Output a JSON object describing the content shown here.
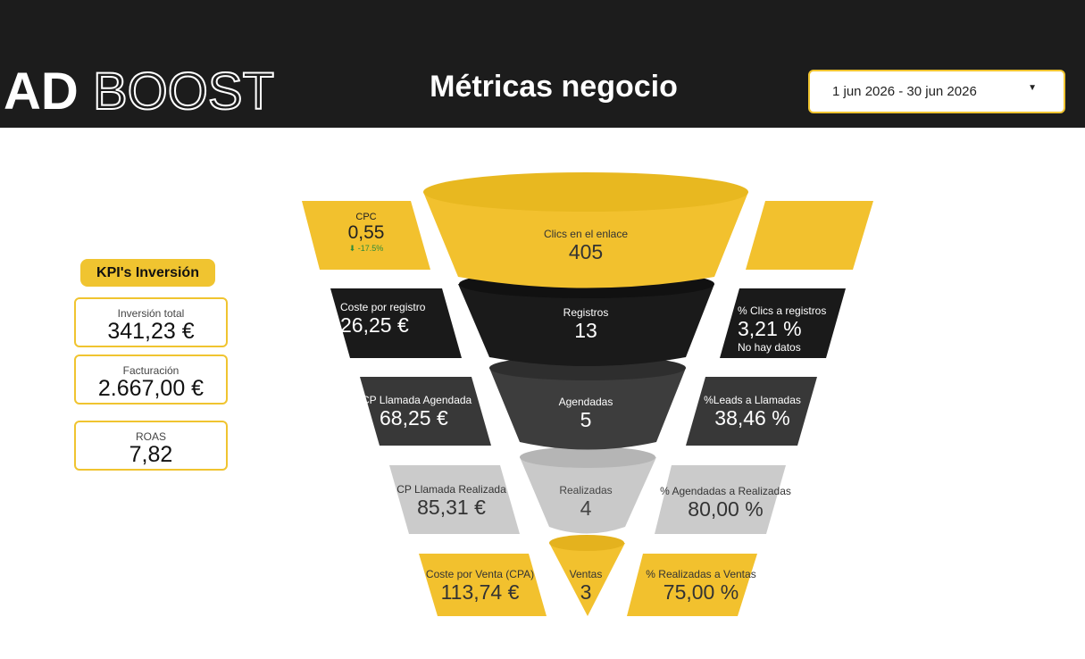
{
  "header": {
    "logo_bold": "AD",
    "logo_outline": "BOOST",
    "title": "Métricas negocio",
    "date_range": "1 jun 2026 - 30 jun 2026"
  },
  "kpi_panel": {
    "title": "KPI's Inversión",
    "cards": [
      {
        "label": "Inversión total",
        "value": "341,23 €"
      },
      {
        "label": "Facturación",
        "value": "2.667,00 €"
      },
      {
        "label": "ROAS",
        "value": "7,82"
      }
    ]
  },
  "funnel": {
    "stages": [
      {
        "label": "Clics en el enlace",
        "value": "405"
      },
      {
        "label": "Registros",
        "value": "13"
      },
      {
        "label": "Agendadas",
        "value": "5"
      },
      {
        "label": "Realizadas",
        "value": "4"
      },
      {
        "label": "Ventas",
        "value": "3"
      }
    ],
    "left_metrics": [
      {
        "label": "CPC",
        "value": "0,55",
        "delta": "⬇ -17.5%"
      },
      {
        "label": "Coste por registro",
        "value": "26,25 €"
      },
      {
        "label": "CP Llamada Agendada",
        "value": "68,25 €"
      },
      {
        "label": "CP Llamada Realizada",
        "value": "85,31 €"
      },
      {
        "label": "Coste por Venta (CPA)",
        "value": "113,74 €"
      }
    ],
    "right_metrics": [
      {
        "label": "% Clics a registros",
        "value": "3,21 %",
        "note": "No hay datos"
      },
      {
        "label": "%Leads a Llamadas",
        "value": "38,46 %"
      },
      {
        "label": "% Agendadas a Realizadas",
        "value": "80,00 %"
      },
      {
        "label": "% Realizadas a Ventas",
        "value": "75,00 %"
      }
    ]
  }
}
